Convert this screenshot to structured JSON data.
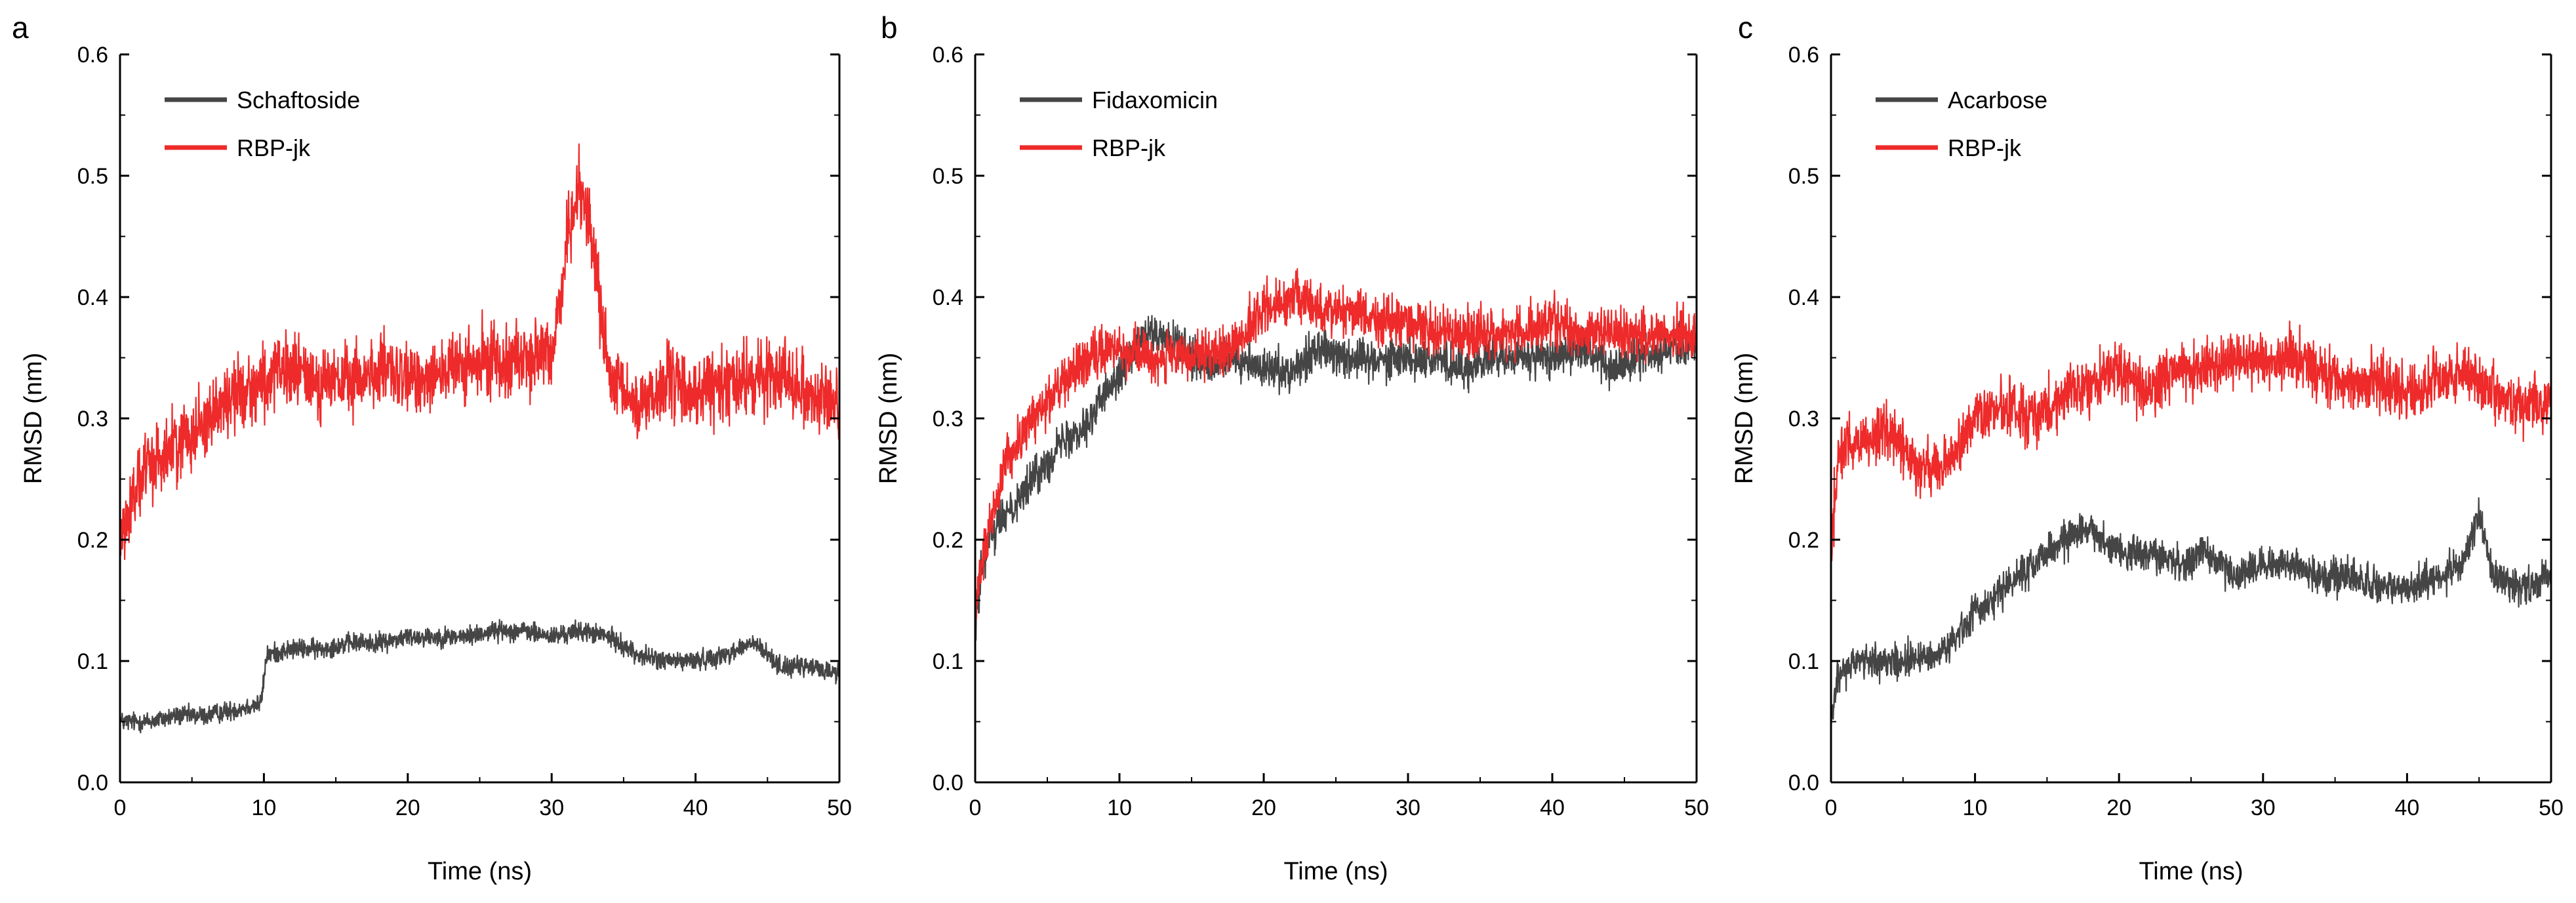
{
  "figure": {
    "panels": [
      "a",
      "b",
      "c"
    ]
  },
  "colors": {
    "ligand": "#454545",
    "protein": "#ee2a2a",
    "axis": "#000000"
  },
  "chart_data": [
    {
      "type": "line",
      "panel_label": "a",
      "title": "",
      "xlabel": "Time (ns)",
      "ylabel": "RMSD (nm)",
      "xlim": [
        0,
        50
      ],
      "ylim": [
        0.0,
        0.6
      ],
      "xticks": [
        "0",
        "10",
        "20",
        "30",
        "40",
        "50"
      ],
      "yticks": [
        "0.0",
        "0.1",
        "0.2",
        "0.3",
        "0.4",
        "0.5",
        "0.6"
      ],
      "legend_position": "top-left",
      "series": [
        {
          "name": "Schaftoside",
          "color": "#454545",
          "x": [
            0,
            2,
            4,
            6,
            8,
            9.8,
            10.2,
            12,
            14,
            16,
            18,
            20,
            22,
            24,
            26,
            28,
            30,
            32,
            34,
            36,
            38,
            40,
            42,
            44,
            46,
            48,
            50
          ],
          "y": [
            0.05,
            0.05,
            0.055,
            0.055,
            0.06,
            0.065,
            0.105,
            0.11,
            0.11,
            0.115,
            0.115,
            0.12,
            0.12,
            0.12,
            0.125,
            0.125,
            0.12,
            0.125,
            0.12,
            0.105,
            0.1,
            0.1,
            0.105,
            0.115,
            0.095,
            0.095,
            0.09
          ],
          "noise": 0.012
        },
        {
          "name": "RBP-jk",
          "color": "#ee2a2a",
          "x": [
            0,
            1,
            2,
            4,
            6,
            8,
            10,
            12,
            14,
            16,
            18,
            20,
            22,
            24,
            26,
            28,
            30,
            31,
            32,
            33,
            34,
            36,
            38,
            40,
            42,
            44,
            46,
            48,
            50
          ],
          "y": [
            0.2,
            0.24,
            0.26,
            0.28,
            0.3,
            0.32,
            0.33,
            0.34,
            0.33,
            0.33,
            0.34,
            0.33,
            0.34,
            0.34,
            0.35,
            0.35,
            0.35,
            0.44,
            0.5,
            0.43,
            0.33,
            0.31,
            0.33,
            0.32,
            0.33,
            0.33,
            0.34,
            0.32,
            0.31
          ],
          "noise": 0.045
        }
      ]
    },
    {
      "type": "line",
      "panel_label": "b",
      "title": "",
      "xlabel": "Time (ns)",
      "ylabel": "RMSD (nm)",
      "xlim": [
        0,
        50
      ],
      "ylim": [
        0.0,
        0.6
      ],
      "xticks": [
        "0",
        "10",
        "20",
        "30",
        "40",
        "50"
      ],
      "yticks": [
        "0.0",
        "0.1",
        "0.2",
        "0.3",
        "0.4",
        "0.5",
        "0.6"
      ],
      "legend_position": "top-left",
      "series": [
        {
          "name": "Fidaxomicin",
          "color": "#454545",
          "x": [
            0,
            0.5,
            1,
            2,
            4,
            6,
            8,
            10,
            12,
            14,
            16,
            18,
            20,
            22,
            24,
            26,
            28,
            30,
            32,
            34,
            36,
            38,
            40,
            42,
            44,
            46,
            48,
            50
          ],
          "y": [
            0.13,
            0.18,
            0.2,
            0.22,
            0.25,
            0.28,
            0.3,
            0.34,
            0.37,
            0.36,
            0.34,
            0.35,
            0.34,
            0.34,
            0.36,
            0.35,
            0.35,
            0.35,
            0.35,
            0.34,
            0.35,
            0.35,
            0.35,
            0.36,
            0.34,
            0.35,
            0.36,
            0.36
          ],
          "noise": 0.025
        },
        {
          "name": "RBP-jk",
          "color": "#ee2a2a",
          "x": [
            0,
            0.5,
            1,
            2,
            4,
            6,
            8,
            10,
            12,
            14,
            16,
            18,
            20,
            22,
            24,
            26,
            28,
            30,
            32,
            34,
            36,
            38,
            40,
            42,
            44,
            46,
            48,
            50
          ],
          "y": [
            0.15,
            0.18,
            0.21,
            0.26,
            0.3,
            0.33,
            0.35,
            0.36,
            0.35,
            0.35,
            0.35,
            0.36,
            0.39,
            0.4,
            0.39,
            0.39,
            0.38,
            0.38,
            0.37,
            0.37,
            0.37,
            0.37,
            0.38,
            0.37,
            0.37,
            0.37,
            0.37,
            0.37
          ],
          "noise": 0.03
        }
      ]
    },
    {
      "type": "line",
      "panel_label": "c",
      "title": "",
      "xlabel": "Time (ns)",
      "ylabel": "RMSD (nm)",
      "xlim": [
        0,
        50
      ],
      "ylim": [
        0.0,
        0.6
      ],
      "xticks": [
        "0",
        "10",
        "20",
        "30",
        "40",
        "50"
      ],
      "yticks": [
        "0.0",
        "0.1",
        "0.2",
        "0.3",
        "0.4",
        "0.5",
        "0.6"
      ],
      "legend_position": "top-left",
      "series": [
        {
          "name": "Acarbose",
          "color": "#454545",
          "x": [
            0,
            0.5,
            2,
            4,
            6,
            8,
            10,
            12,
            14,
            16,
            18,
            20,
            22,
            24,
            26,
            28,
            30,
            32,
            34,
            36,
            38,
            40,
            42,
            44,
            45,
            46,
            48,
            50
          ],
          "y": [
            0.05,
            0.09,
            0.1,
            0.1,
            0.1,
            0.11,
            0.14,
            0.16,
            0.18,
            0.2,
            0.21,
            0.19,
            0.19,
            0.18,
            0.19,
            0.17,
            0.18,
            0.18,
            0.17,
            0.17,
            0.16,
            0.16,
            0.17,
            0.18,
            0.22,
            0.17,
            0.16,
            0.17
          ],
          "noise": 0.022
        },
        {
          "name": "RBP-jk",
          "color": "#ee2a2a",
          "x": [
            0,
            0.5,
            2,
            4,
            6,
            8,
            10,
            12,
            14,
            16,
            18,
            20,
            22,
            24,
            26,
            28,
            30,
            32,
            34,
            36,
            38,
            40,
            42,
            44,
            46,
            48,
            50
          ],
          "y": [
            0.19,
            0.27,
            0.28,
            0.29,
            0.26,
            0.26,
            0.3,
            0.31,
            0.3,
            0.32,
            0.33,
            0.34,
            0.32,
            0.34,
            0.34,
            0.35,
            0.35,
            0.35,
            0.34,
            0.33,
            0.33,
            0.32,
            0.33,
            0.34,
            0.32,
            0.31,
            0.31
          ],
          "noise": 0.035
        }
      ]
    }
  ]
}
